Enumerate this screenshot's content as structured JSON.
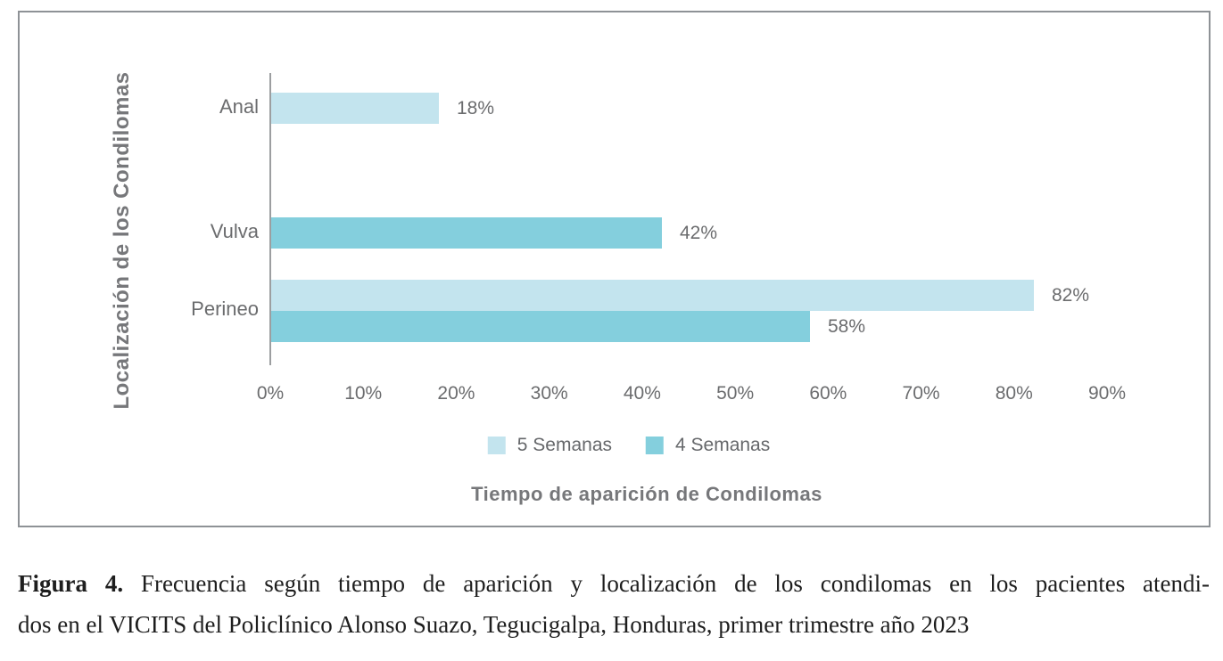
{
  "chart": {
    "y_axis_title": "Localización de los Condilomas",
    "x_axis_title": "Tiempo de aparición de Condilomas"
  },
  "chart_data": {
    "type": "bar",
    "orientation": "horizontal",
    "title": "",
    "categories": [
      "Anal",
      "Vulva",
      "Perineo"
    ],
    "series": [
      {
        "name": "5 Semanas",
        "color": "#c3e4ee",
        "values": [
          18,
          null,
          82
        ]
      },
      {
        "name": "4 Semanas",
        "color": "#84cfdd",
        "values": [
          null,
          42,
          58
        ]
      }
    ],
    "value_suffix": "%",
    "xlabel": "Tiempo de aparición de Condilomas",
    "ylabel": "Localización de los Condilomas",
    "xlim": [
      0,
      90
    ],
    "x_tick_step": 10,
    "x_ticks": [
      "0%",
      "10%",
      "20%",
      "30%",
      "40%",
      "50%",
      "60%",
      "70%",
      "80%",
      "90%"
    ],
    "grid": false,
    "legend_position": "bottom"
  },
  "colors": {
    "series_5_semanas": "#c3e4ee",
    "series_4_semanas": "#84cfdd",
    "axis_line": "#9c9ea0",
    "tick_text": "#6b6c6e",
    "axis_title_text": "#76777a",
    "frame_border": "#8e9296"
  },
  "caption": {
    "figure_label": "Figura 4.",
    "line1": " Frecuencia según tiempo de aparición y localización de los condilomas en los pacientes atendi-",
    "line2": "dos en el VICITS del Policlínico Alonso Suazo, Tegucigalpa, Honduras, primer trimestre año 2023"
  }
}
